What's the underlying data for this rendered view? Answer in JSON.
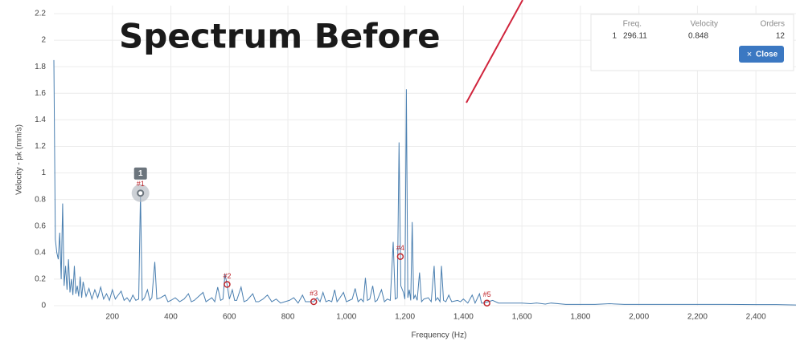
{
  "chart_data": {
    "type": "line",
    "title": "Spectrum Before",
    "xlabel": "Frequency (Hz)",
    "ylabel": "Velocity - pk (mm/s)",
    "color": "#4a7fb0",
    "grid": true,
    "xlim": [
      0,
      2537
    ],
    "ylim": [
      0,
      2.2
    ],
    "xticks": [
      200,
      400,
      600,
      800,
      {
        "value": 1000,
        "label": "1,000"
      },
      {
        "value": 1200,
        "label": "1,200"
      },
      {
        "value": 1400,
        "label": "1,400"
      },
      {
        "value": 1600,
        "label": "1,600"
      },
      {
        "value": 1800,
        "label": "1,800"
      },
      {
        "value": 2000,
        "label": "2,000"
      },
      {
        "value": 2200,
        "label": "2,200"
      },
      {
        "value": 2400,
        "label": "2,400"
      }
    ],
    "yticks": [
      0,
      0.2,
      0.4,
      0.6,
      0.8,
      1,
      1.2,
      1.4,
      1.6,
      1.8,
      2,
      2.2
    ],
    "x": [
      0,
      5,
      10,
      15,
      20,
      25,
      30,
      35,
      40,
      45,
      50,
      55,
      60,
      65,
      70,
      75,
      80,
      85,
      90,
      95,
      100,
      110,
      120,
      130,
      140,
      150,
      160,
      170,
      180,
      190,
      200,
      210,
      220,
      230,
      240,
      250,
      260,
      270,
      280,
      290,
      296,
      302,
      310,
      320,
      328,
      335,
      345,
      352,
      365,
      380,
      390,
      400,
      415,
      430,
      445,
      460,
      470,
      480,
      495,
      510,
      520,
      540,
      550,
      560,
      570,
      578,
      585,
      592,
      600,
      610,
      618,
      625,
      640,
      650,
      660,
      680,
      690,
      700,
      715,
      730,
      745,
      760,
      775,
      790,
      805,
      820,
      835,
      850,
      860,
      870,
      888,
      900,
      910,
      920,
      930,
      940,
      950,
      960,
      968,
      975,
      990,
      1000,
      1010,
      1020,
      1030,
      1040,
      1050,
      1058,
      1065,
      1072,
      1080,
      1090,
      1098,
      1105,
      1120,
      1130,
      1140,
      1150,
      1160,
      1167,
      1174,
      1180,
      1186,
      1195,
      1200,
      1205,
      1210,
      1215,
      1220,
      1225,
      1230,
      1235,
      1242,
      1250,
      1257,
      1265,
      1280,
      1290,
      1300,
      1305,
      1312,
      1320,
      1325,
      1332,
      1340,
      1350,
      1360,
      1380,
      1390,
      1400,
      1415,
      1430,
      1440,
      1455,
      1462,
      1470,
      1485,
      1500,
      1520,
      1550,
      1580,
      1600,
      1630,
      1650,
      1680,
      1700,
      1750,
      1800,
      1850,
      1900,
      1950,
      2000,
      2100,
      2200,
      2300,
      2400,
      2470,
      2537
    ],
    "values": [
      1.85,
      0.5,
      0.4,
      0.35,
      0.55,
      0.2,
      0.77,
      0.15,
      0.3,
      0.12,
      0.35,
      0.1,
      0.2,
      0.08,
      0.3,
      0.09,
      0.15,
      0.07,
      0.22,
      0.06,
      0.18,
      0.07,
      0.13,
      0.05,
      0.12,
      0.06,
      0.14,
      0.05,
      0.09,
      0.04,
      0.12,
      0.05,
      0.08,
      0.11,
      0.04,
      0.06,
      0.03,
      0.08,
      0.04,
      0.05,
      0.848,
      0.04,
      0.06,
      0.12,
      0.04,
      0.06,
      0.33,
      0.05,
      0.06,
      0.08,
      0.03,
      0.04,
      0.06,
      0.03,
      0.05,
      0.09,
      0.03,
      0.04,
      0.07,
      0.1,
      0.03,
      0.06,
      0.03,
      0.14,
      0.04,
      0.05,
      0.24,
      0.16,
      0.05,
      0.12,
      0.04,
      0.04,
      0.14,
      0.03,
      0.04,
      0.09,
      0.03,
      0.03,
      0.05,
      0.08,
      0.03,
      0.05,
      0.02,
      0.03,
      0.04,
      0.06,
      0.02,
      0.08,
      0.03,
      0.03,
      0.03,
      0.06,
      0.03,
      0.1,
      0.03,
      0.04,
      0.03,
      0.12,
      0.03,
      0.05,
      0.1,
      0.03,
      0.04,
      0.05,
      0.13,
      0.03,
      0.05,
      0.03,
      0.21,
      0.04,
      0.05,
      0.15,
      0.03,
      0.04,
      0.12,
      0.03,
      0.05,
      0.04,
      0.48,
      0.05,
      0.06,
      1.23,
      0.15,
      0.1,
      0.05,
      1.63,
      0.06,
      0.12,
      0.04,
      0.63,
      0.05,
      0.08,
      0.04,
      0.25,
      0.03,
      0.05,
      0.06,
      0.03,
      0.3,
      0.04,
      0.06,
      0.03,
      0.3,
      0.04,
      0.03,
      0.08,
      0.03,
      0.04,
      0.03,
      0.05,
      0.02,
      0.08,
      0.02,
      0.09,
      0.02,
      0.02,
      0.03,
      0.04,
      0.02,
      0.02,
      0.02,
      0.02,
      0.015,
      0.02,
      0.012,
      0.02,
      0.01,
      0.01,
      0.01,
      0.015,
      0.01,
      0.01,
      0.01,
      0.01,
      0.01,
      0.008,
      0.008,
      0.005
    ],
    "markers": [
      {
        "label": "#1",
        "x": 296.11,
        "y": 0.848
      },
      {
        "label": "#2",
        "x": 592.22,
        "y": 0.16
      },
      {
        "label": "#3",
        "x": 888.33,
        "y": 0.03
      },
      {
        "label": "#4",
        "x": 1184.44,
        "y": 0.37
      },
      {
        "label": "#5",
        "x": 1480.55,
        "y": 0.02
      }
    ],
    "marker_badge": "1"
  },
  "table": {
    "headers": [
      "Freq.",
      "Velocity",
      "Orders"
    ],
    "rows": [
      [
        "1",
        "296.11",
        "0.848",
        "12"
      ]
    ],
    "close_button": "Close"
  }
}
